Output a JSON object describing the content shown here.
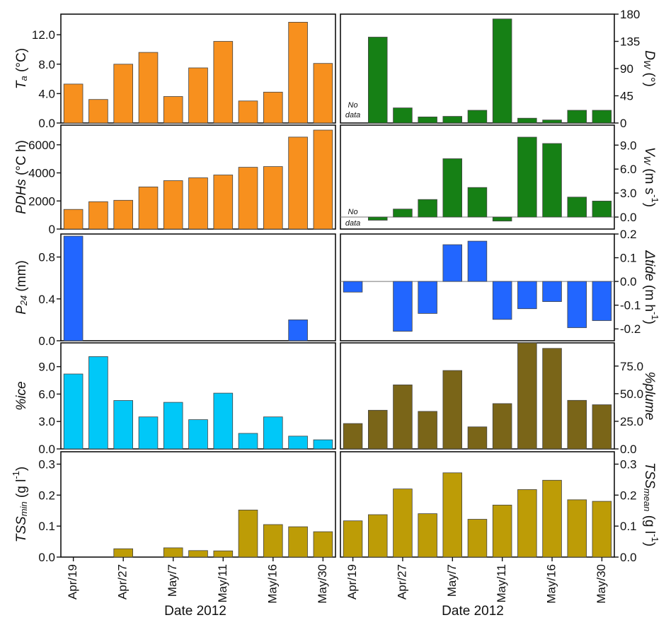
{
  "figure": {
    "xlabel_left": "Date 2012",
    "xlabel_right": "Date 2012",
    "xtick_labels": [
      "Apr/19",
      "Apr/27",
      "May/7",
      "May/11",
      "May/16",
      "May/30"
    ],
    "no_data": [
      "No",
      "data"
    ]
  },
  "chart_data": [
    {
      "id": "ta",
      "type": "bar",
      "color": "#f7901e",
      "ylabel_main": "T",
      "ylabel_sub": "a",
      "ylabel_rest": " (°C)",
      "ylim": [
        0,
        14.8
      ],
      "yticks": [
        0,
        4,
        8,
        12
      ],
      "ytick_labels": [
        "0.0",
        "4.0",
        "8.0",
        "12.0"
      ],
      "values": [
        5.3,
        3.2,
        8.0,
        9.6,
        3.6,
        7.5,
        11.1,
        3.0,
        4.2,
        13.7,
        8.1
      ]
    },
    {
      "id": "dw",
      "type": "bar",
      "color": "#168015",
      "ylabel_main": "D",
      "ylabel_sub": "W",
      "ylabel_rest": " (°)",
      "ylim": [
        0,
        180
      ],
      "yticks": [
        0,
        45,
        90,
        135,
        180
      ],
      "ytick_labels": [
        "0",
        "45",
        "90",
        "135",
        "180"
      ],
      "values": [
        null,
        142,
        25,
        10,
        11,
        21,
        172,
        8,
        5,
        21,
        21
      ]
    },
    {
      "id": "pdh",
      "type": "bar",
      "color": "#f7901e",
      "ylabel_main": "PDHs",
      "ylabel_sub": "",
      "ylabel_rest": " (°C h)",
      "ylim": [
        0,
        7400
      ],
      "yticks": [
        0,
        2000,
        4000,
        6000
      ],
      "ytick_labels": [
        "0",
        "2000",
        "4000",
        "6000"
      ],
      "values": [
        1400,
        1950,
        2050,
        3000,
        3450,
        3650,
        3850,
        4400,
        4450,
        6550,
        7050
      ]
    },
    {
      "id": "vw",
      "type": "bar",
      "color": "#168015",
      "ylabel_main": "V",
      "ylabel_sub": "W",
      "ylabel_rest": " (m s",
      "ylabel_sup": "-1",
      "ylabel_close": ")",
      "ylim": [
        -1.5,
        11.5
      ],
      "yticks": [
        0,
        3,
        6,
        9
      ],
      "ytick_labels": [
        "0.0",
        "3.0",
        "6.0",
        "9.0"
      ],
      "values": [
        null,
        -0.4,
        1.0,
        2.2,
        7.3,
        3.7,
        -0.5,
        10.0,
        9.2,
        2.5,
        2.0
      ]
    },
    {
      "id": "p24",
      "type": "bar",
      "color": "#2266ff",
      "ylabel_main": "P",
      "ylabel_sub": "24",
      "ylabel_rest": " (mm)",
      "ylim": [
        0,
        1.02
      ],
      "yticks": [
        0,
        0.4,
        0.8
      ],
      "ytick_labels": [
        "0.0",
        "0.4",
        "0.8"
      ],
      "values": [
        1.0,
        0,
        0,
        0,
        0,
        0,
        0,
        0,
        0,
        0.2,
        0
      ]
    },
    {
      "id": "tide",
      "type": "bar",
      "color": "#2266ff",
      "ylabel_main": "Δtide",
      "ylabel_sub": "",
      "ylabel_rest": " (m h",
      "ylabel_sup": "-1",
      "ylabel_close": ")",
      "ylim": [
        -0.25,
        0.2
      ],
      "yticks": [
        -0.2,
        -0.1,
        0,
        0.1,
        0.2
      ],
      "ytick_labels": [
        "-0.2",
        "-0.1",
        "0.0",
        "0.1",
        "0.2"
      ],
      "values": [
        -0.045,
        null,
        -0.21,
        -0.135,
        0.155,
        0.17,
        -0.16,
        -0.115,
        -0.085,
        -0.195,
        -0.165
      ]
    },
    {
      "id": "ice",
      "type": "bar",
      "color": "#00c8f8",
      "ylabel_main": "%ice",
      "ylabel_sub": "",
      "ylabel_rest": "",
      "ylim": [
        0,
        11.6
      ],
      "yticks": [
        0,
        3,
        6,
        9
      ],
      "ytick_labels": [
        "0.0",
        "3.0",
        "6.0",
        "9.0"
      ],
      "values": [
        8.2,
        10.1,
        5.3,
        3.5,
        5.1,
        3.2,
        6.1,
        1.7,
        3.5,
        1.4,
        1.0
      ]
    },
    {
      "id": "plume",
      "type": "bar",
      "color": "#7a6518",
      "ylabel_main": "%plume",
      "ylabel_sub": "",
      "ylabel_rest": "",
      "ylim": [
        0,
        96
      ],
      "yticks": [
        0,
        25,
        50,
        75
      ],
      "ytick_labels": [
        "0.0",
        "25.0",
        "50.0",
        "75.0"
      ],
      "values": [
        23,
        35,
        58,
        34,
        71,
        20,
        41,
        96,
        91,
        44,
        40
      ]
    },
    {
      "id": "tssmin",
      "type": "bar",
      "color": "#bd9c06",
      "ylabel_main": "TSS",
      "ylabel_sub": "min",
      "ylabel_rest": " (g l",
      "ylabel_sup": "-1",
      "ylabel_close": ")",
      "ylim": [
        0,
        0.34
      ],
      "yticks": [
        0,
        0.1,
        0.2,
        0.3
      ],
      "ytick_labels": [
        "0.0",
        "0.1",
        "0.2",
        "0.3"
      ],
      "values": [
        0,
        0,
        0.027,
        0,
        0.03,
        0.021,
        0.02,
        0.152,
        0.105,
        0.098,
        0.082
      ]
    },
    {
      "id": "tssmean",
      "type": "bar",
      "color": "#bd9c06",
      "ylabel_main": "TSS",
      "ylabel_sub": "mean",
      "ylabel_rest": " (g l",
      "ylabel_sup": "-1",
      "ylabel_close": ")",
      "ylim": [
        0,
        0.34
      ],
      "yticks": [
        0,
        0.1,
        0.2,
        0.3
      ],
      "ytick_labels": [
        "0.0",
        "0.1",
        "0.2",
        "0.3"
      ],
      "values": [
        0.117,
        0.137,
        0.22,
        0.14,
        0.272,
        0.122,
        0.168,
        0.218,
        0.248,
        0.185,
        0.18
      ]
    }
  ]
}
